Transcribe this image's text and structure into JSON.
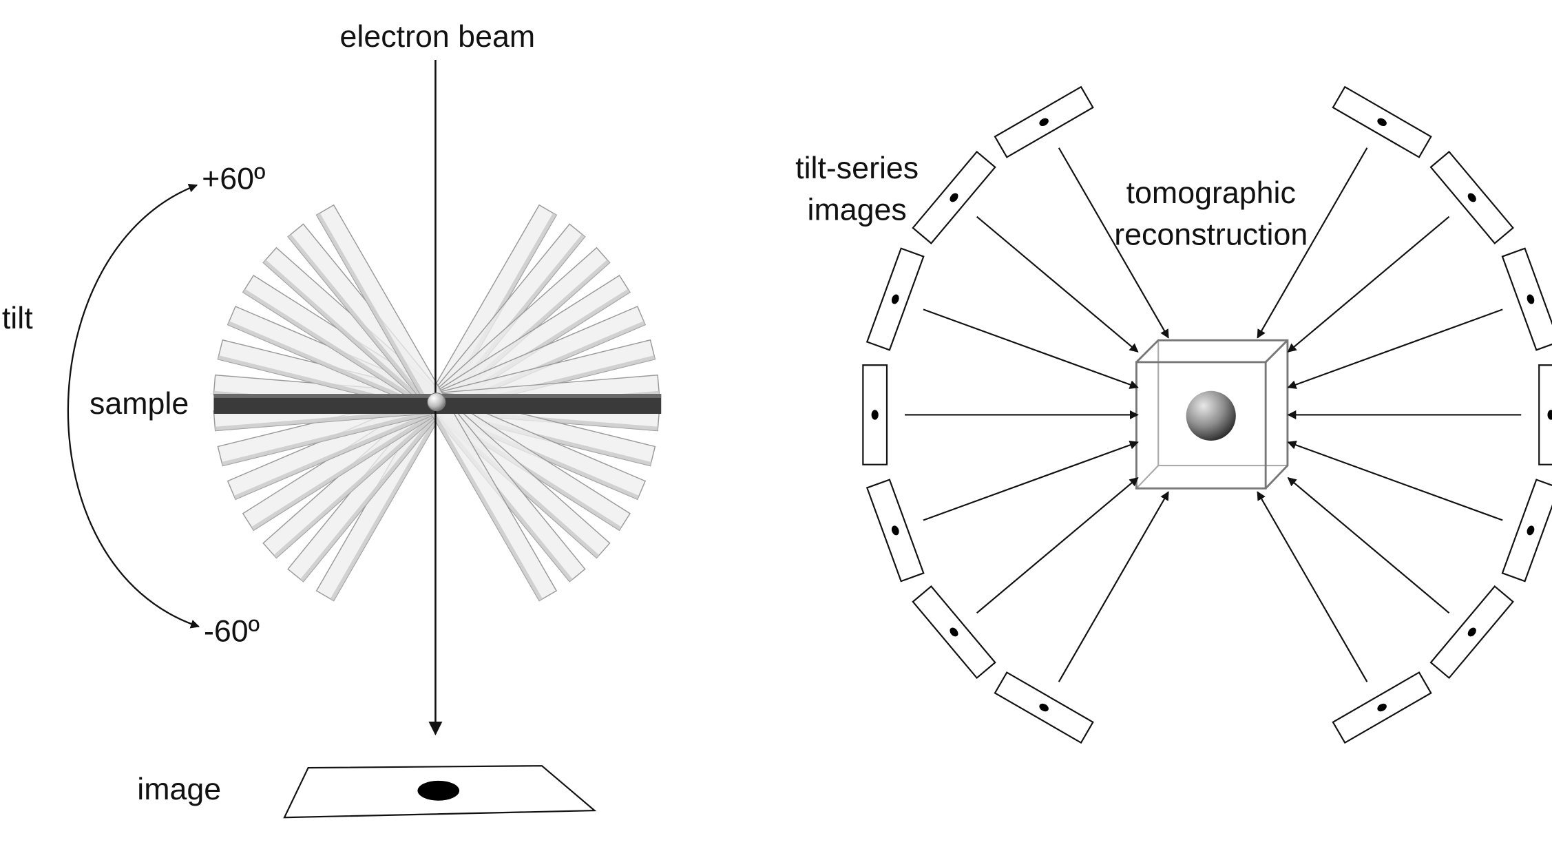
{
  "left_panel": {
    "beam_label": "electron beam",
    "tilt_label": "tilt",
    "tilt_max_label": "+60º",
    "tilt_min_label": "-60º",
    "sample_label": "sample",
    "image_label": "image",
    "tilt_range_deg": [
      -60,
      60
    ]
  },
  "right_panel": {
    "series_label_line1": "tilt-series",
    "series_label_line2": "images",
    "recon_label_line1": "tomographic",
    "recon_label_line2": "reconstruction"
  },
  "colors": {
    "line": "#111111",
    "sample_bar": "#3a3a3a",
    "ghost_slab": "#ededed",
    "ghost_edge": "#9a9a9a"
  }
}
